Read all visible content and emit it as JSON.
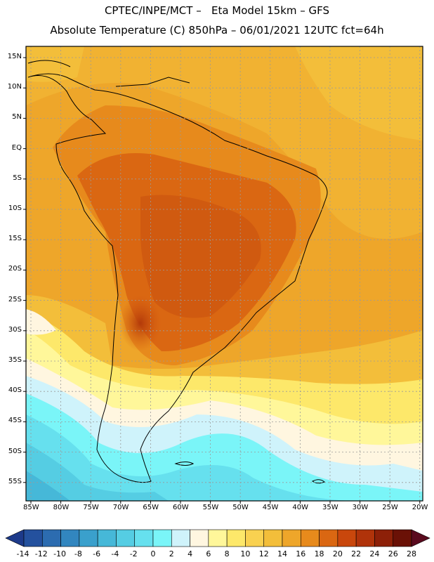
{
  "header": {
    "title_line1": "CPTEC/INPE/MCT –   Eta Model 15km – GFS",
    "title_line2": "Absolute Temperature (C) 850hPa – 06/01/2021 12UTC fct=64h"
  },
  "map": {
    "lat_labels": [
      "15N",
      "10N",
      "5N",
      "EQ",
      "5S",
      "10S",
      "15S",
      "20S",
      "25S",
      "30S",
      "35S",
      "40S",
      "45S",
      "50S",
      "55S"
    ],
    "lon_labels": [
      "85W",
      "80W",
      "75W",
      "70W",
      "65W",
      "60W",
      "55W",
      "50W",
      "45W",
      "40W",
      "35W",
      "30W",
      "25W",
      "20W"
    ]
  },
  "colorbar": {
    "labels": [
      "-14",
      "-12",
      "-10",
      "-8",
      "-6",
      "-4",
      "-2",
      "0",
      "2",
      "4",
      "6",
      "8",
      "10",
      "12",
      "14",
      "16",
      "18",
      "20",
      "22",
      "24",
      "26",
      "28"
    ],
    "colors": [
      "#1d3a8a",
      "#24519e",
      "#2c6cb0",
      "#3286bf",
      "#3aa0cc",
      "#46b8d8",
      "#55cde3",
      "#66e0ee",
      "#7af5f8",
      "#cff3fb",
      "#fff6e0",
      "#fff79a",
      "#fde86a",
      "#f9d150",
      "#f3be3a",
      "#eea62a",
      "#e78a1c",
      "#da6712",
      "#c9470c",
      "#b0330a",
      "#8d2008",
      "#6a1106",
      "#5a0a1e"
    ]
  }
}
